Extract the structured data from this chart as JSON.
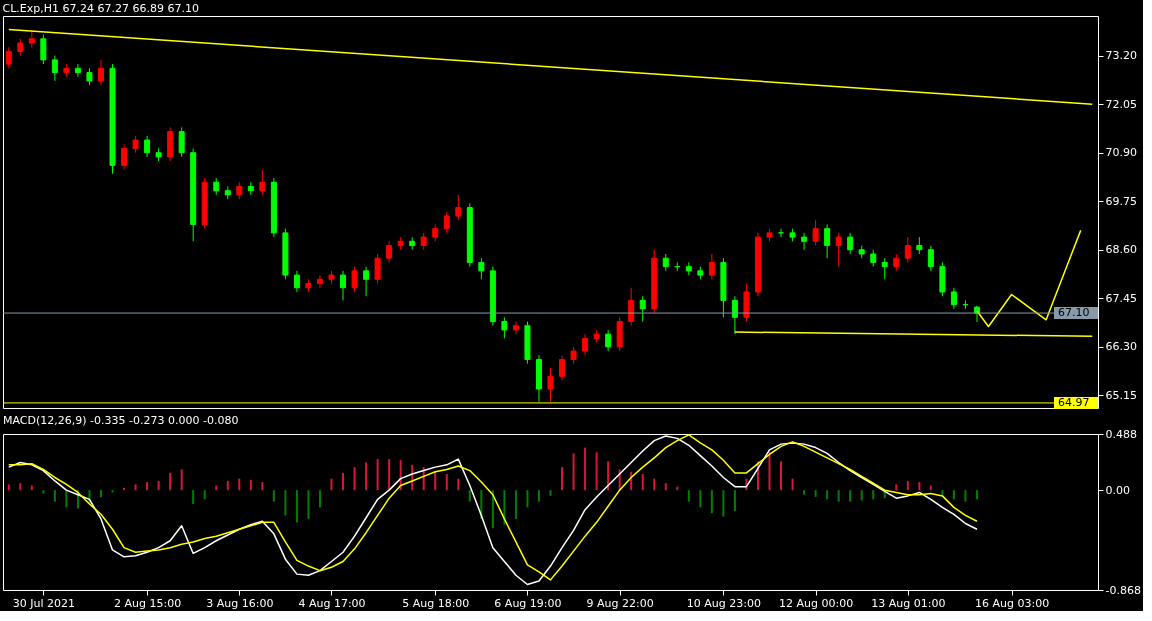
{
  "chart_data": [
    {
      "type": "candlestick",
      "title": "CL.Exp,H1  67.24 67.27 66.89 67.10",
      "categories": [
        null,
        null,
        null,
        null,
        null,
        null,
        null,
        null,
        null,
        null,
        null,
        null,
        null,
        null,
        null,
        null,
        null,
        null,
        null,
        null,
        null,
        null,
        null,
        null,
        null,
        null,
        null,
        null,
        null,
        null,
        null,
        null,
        null,
        null,
        null,
        null,
        null,
        null,
        null,
        null,
        null,
        null,
        null,
        null,
        null,
        null,
        null,
        null,
        null,
        null,
        null,
        null,
        null,
        null,
        null,
        null,
        null,
        null,
        null,
        null,
        null,
        null,
        null,
        null,
        null,
        null,
        null,
        null,
        null,
        null,
        null,
        null,
        null,
        null,
        null,
        null,
        null,
        null,
        null,
        null,
        null,
        null,
        null,
        null,
        null,
        null,
        null,
        null,
        null,
        null,
        null,
        null,
        null,
        null,
        null
      ],
      "ohlc": [
        [
          73.0,
          73.4,
          72.9,
          73.3
        ],
        [
          73.3,
          73.6,
          73.2,
          73.5
        ],
        [
          73.5,
          73.8,
          73.4,
          73.6
        ],
        [
          73.6,
          73.7,
          73.0,
          73.1
        ],
        [
          73.1,
          73.2,
          72.6,
          72.8
        ],
        [
          72.8,
          73.0,
          72.7,
          72.9
        ],
        [
          72.9,
          73.0,
          72.7,
          72.8
        ],
        [
          72.8,
          72.9,
          72.5,
          72.6
        ],
        [
          72.6,
          73.1,
          72.5,
          72.9
        ],
        [
          72.9,
          73.0,
          70.4,
          70.6
        ],
        [
          70.6,
          71.1,
          70.5,
          71.0
        ],
        [
          71.0,
          71.3,
          70.9,
          71.2
        ],
        [
          71.2,
          71.3,
          70.8,
          70.9
        ],
        [
          70.9,
          71.0,
          70.7,
          70.8
        ],
        [
          70.8,
          71.5,
          70.7,
          71.4
        ],
        [
          71.4,
          71.5,
          70.8,
          70.9
        ],
        [
          70.9,
          71.0,
          68.8,
          69.2
        ],
        [
          69.2,
          70.3,
          69.1,
          70.2
        ],
        [
          70.2,
          70.3,
          69.9,
          70.0
        ],
        [
          70.0,
          70.1,
          69.8,
          69.9
        ],
        [
          69.9,
          70.2,
          69.8,
          70.1
        ],
        [
          70.1,
          70.2,
          69.9,
          70.0
        ],
        [
          70.0,
          70.5,
          69.9,
          70.2
        ],
        [
          70.2,
          70.3,
          68.9,
          69.0
        ],
        [
          69.0,
          69.1,
          67.9,
          68.0
        ],
        [
          68.0,
          68.1,
          67.6,
          67.7
        ],
        [
          67.7,
          67.9,
          67.6,
          67.8
        ],
        [
          67.8,
          68.0,
          67.7,
          67.9
        ],
        [
          67.9,
          68.1,
          67.8,
          68.0
        ],
        [
          68.0,
          68.1,
          67.4,
          67.7
        ],
        [
          67.7,
          68.2,
          67.6,
          68.1
        ],
        [
          68.1,
          68.2,
          67.5,
          67.9
        ],
        [
          67.9,
          68.5,
          67.8,
          68.4
        ],
        [
          68.4,
          68.8,
          68.3,
          68.7
        ],
        [
          68.7,
          68.9,
          68.6,
          68.8
        ],
        [
          68.8,
          68.9,
          68.6,
          68.7
        ],
        [
          68.7,
          69.0,
          68.6,
          68.9
        ],
        [
          68.9,
          69.2,
          68.8,
          69.1
        ],
        [
          69.1,
          69.5,
          69.0,
          69.4
        ],
        [
          69.4,
          69.9,
          69.3,
          69.6
        ],
        [
          69.6,
          69.7,
          68.2,
          68.3
        ],
        [
          68.3,
          68.4,
          67.9,
          68.1
        ],
        [
          68.1,
          68.2,
          66.8,
          66.9
        ],
        [
          66.9,
          67.0,
          66.5,
          66.7
        ],
        [
          66.7,
          66.9,
          66.6,
          66.8
        ],
        [
          66.8,
          66.9,
          65.9,
          66.0
        ],
        [
          66.0,
          66.1,
          65.0,
          65.3
        ],
        [
          65.3,
          65.8,
          65.0,
          65.6
        ],
        [
          65.6,
          66.1,
          65.5,
          66.0
        ],
        [
          66.0,
          66.3,
          65.9,
          66.2
        ],
        [
          66.2,
          66.6,
          66.1,
          66.5
        ],
        [
          66.5,
          66.7,
          66.4,
          66.6
        ],
        [
          66.6,
          66.7,
          66.2,
          66.3
        ],
        [
          66.3,
          67.0,
          66.2,
          66.9
        ],
        [
          66.9,
          67.7,
          66.8,
          67.4
        ],
        [
          67.4,
          67.5,
          66.9,
          67.2
        ],
        [
          67.2,
          68.6,
          67.1,
          68.4
        ],
        [
          68.4,
          68.5,
          68.1,
          68.2
        ],
        [
          68.2,
          68.3,
          68.1,
          68.2
        ],
        [
          68.2,
          68.3,
          68.0,
          68.1
        ],
        [
          68.1,
          68.2,
          67.9,
          68.0
        ],
        [
          68.0,
          68.5,
          67.9,
          68.3
        ],
        [
          68.3,
          68.4,
          67.0,
          67.4
        ],
        [
          67.4,
          67.5,
          66.6,
          67.0
        ],
        [
          67.0,
          67.8,
          66.9,
          67.6
        ],
        [
          67.6,
          69.0,
          67.5,
          68.9
        ],
        [
          68.9,
          69.1,
          68.8,
          69.0
        ],
        [
          69.0,
          69.1,
          68.9,
          69.0
        ],
        [
          69.0,
          69.1,
          68.8,
          68.9
        ],
        [
          68.9,
          69.0,
          68.6,
          68.8
        ],
        [
          68.8,
          69.3,
          68.7,
          69.1
        ],
        [
          69.1,
          69.2,
          68.4,
          68.7
        ],
        [
          68.7,
          69.0,
          68.2,
          68.9
        ],
        [
          68.9,
          69.0,
          68.5,
          68.6
        ],
        [
          68.6,
          68.7,
          68.4,
          68.5
        ],
        [
          68.5,
          68.6,
          68.2,
          68.3
        ],
        [
          68.3,
          68.4,
          67.9,
          68.2
        ],
        [
          68.2,
          68.5,
          68.1,
          68.4
        ],
        [
          68.4,
          68.9,
          68.3,
          68.7
        ],
        [
          68.7,
          68.9,
          68.5,
          68.6
        ],
        [
          68.6,
          68.7,
          68.1,
          68.2
        ],
        [
          68.2,
          68.3,
          67.5,
          67.6
        ],
        [
          67.6,
          67.7,
          67.2,
          67.3
        ],
        [
          67.3,
          67.4,
          67.2,
          67.3
        ],
        [
          67.24,
          67.27,
          66.89,
          67.1
        ],
        null,
        null,
        null,
        null,
        null,
        null,
        null,
        null,
        null,
        null
      ],
      "colors": [
        "#ff0000",
        "#ff0000",
        "#ff0000",
        "#00ff00",
        "#00ff00",
        "#ff0000",
        "#00ff00",
        "#00ff00",
        "#ff0000",
        "#00ff00",
        "#ff0000",
        "#ff0000",
        "#00ff00",
        "#00ff00",
        "#ff0000",
        "#00ff00",
        "#00ff00",
        "#ff0000",
        "#00ff00",
        "#00ff00",
        "#ff0000",
        "#00ff00",
        "#ff0000",
        "#00ff00",
        "#00ff00",
        "#00ff00",
        "#ff0000",
        "#ff0000",
        "#ff0000",
        "#00ff00",
        "#ff0000",
        "#00ff00",
        "#ff0000",
        "#ff0000",
        "#ff0000",
        "#00ff00",
        "#ff0000",
        "#ff0000",
        "#ff0000",
        "#ff0000",
        "#00ff00",
        "#00ff00",
        "#00ff00",
        "#00ff00",
        "#ff0000",
        "#00ff00",
        "#00ff00",
        "#ff0000",
        "#ff0000",
        "#ff0000",
        "#ff0000",
        "#ff0000",
        "#00ff00",
        "#ff0000",
        "#ff0000",
        "#00ff00",
        "#ff0000",
        "#00ff00",
        "#00ff00",
        "#00ff00",
        "#00ff00",
        "#ff0000",
        "#00ff00",
        "#00ff00",
        "#ff0000",
        "#ff0000",
        "#ff0000",
        "#00ff00",
        "#00ff00",
        "#00ff00",
        "#ff0000",
        "#00ff00",
        "#ff0000",
        "#00ff00",
        "#00ff00",
        "#00ff00",
        "#00ff00",
        "#ff0000",
        "#ff0000",
        "#00ff00",
        "#00ff00",
        "#00ff00",
        "#00ff00",
        "#00ff00",
        "#00ff00",
        null,
        null,
        null,
        null,
        null,
        null,
        null,
        null,
        null,
        null
      ],
      "series": [
        {
          "type": "line",
          "color": "#ffff00",
          "values": [
            73.82,
            null,
            null,
            null,
            null,
            null,
            null,
            null,
            null,
            null,
            null,
            null,
            null,
            null,
            null,
            null,
            null,
            null,
            null,
            null,
            null,
            null,
            null,
            null,
            null,
            null,
            null,
            null,
            null,
            null,
            null,
            null,
            null,
            null,
            null,
            null,
            null,
            null,
            null,
            null,
            null,
            null,
            null,
            null,
            null,
            null,
            null,
            null,
            null,
            null,
            null,
            null,
            null,
            null,
            null,
            null,
            null,
            null,
            null,
            null,
            null,
            null,
            null,
            null,
            null,
            null,
            null,
            null,
            null,
            null,
            null,
            null,
            null,
            null,
            null,
            null,
            null,
            null,
            null,
            null,
            null,
            null,
            null,
            null,
            null,
            null,
            null,
            null,
            null,
            null,
            null,
            null,
            null,
            null,
            72.05
          ]
        },
        {
          "type": "line",
          "color": "#ffff00",
          "values": [
            null,
            null,
            null,
            null,
            null,
            null,
            null,
            null,
            null,
            null,
            null,
            null,
            null,
            null,
            null,
            null,
            null,
            null,
            null,
            null,
            null,
            null,
            null,
            null,
            null,
            null,
            null,
            null,
            null,
            null,
            null,
            null,
            null,
            null,
            null,
            null,
            null,
            null,
            null,
            null,
            null,
            null,
            null,
            null,
            null,
            null,
            null,
            null,
            null,
            null,
            null,
            null,
            null,
            null,
            null,
            null,
            null,
            null,
            null,
            null,
            null,
            null,
            null,
            66.65,
            null,
            null,
            null,
            null,
            null,
            null,
            null,
            null,
            null,
            null,
            null,
            null,
            null,
            null,
            null,
            null,
            null,
            null,
            null,
            null,
            null,
            null,
            null,
            null,
            null,
            null,
            null,
            null,
            null,
            null,
            66.55
          ]
        },
        {
          "type": "line",
          "color": "#ffff00",
          "values": [
            null,
            null,
            null,
            null,
            null,
            null,
            null,
            null,
            null,
            null,
            null,
            null,
            null,
            null,
            null,
            null,
            null,
            null,
            null,
            null,
            null,
            null,
            null,
            null,
            null,
            null,
            null,
            null,
            null,
            null,
            null,
            null,
            null,
            null,
            null,
            null,
            null,
            null,
            null,
            null,
            null,
            null,
            null,
            null,
            null,
            null,
            null,
            null,
            null,
            null,
            null,
            null,
            null,
            null,
            null,
            null,
            null,
            null,
            null,
            null,
            null,
            null,
            null,
            null,
            null,
            null,
            null,
            null,
            null,
            null,
            null,
            null,
            null,
            null,
            null,
            null,
            null,
            null,
            null,
            null,
            null,
            null,
            null,
            null,
            67.15,
            66.78,
            null,
            67.54,
            null,
            null,
            66.94,
            null,
            null,
            69.06,
            null
          ]
        }
      ],
      "ref_lines": [
        {
          "axis": "y",
          "value": 67.1,
          "label": "67.10",
          "color": "#8899aa"
        },
        {
          "axis": "y",
          "value": 64.97,
          "label": "64.97",
          "color": "#ffff00"
        }
      ],
      "ylim": [
        64.85,
        74.14
      ],
      "yticks": [
        {
          "value": 73.2,
          "label": "73.20"
        },
        {
          "value": 72.05,
          "label": "72.05"
        },
        {
          "value": 70.9,
          "label": "70.90"
        },
        {
          "value": 69.75,
          "label": "69.75"
        },
        {
          "value": 68.6,
          "label": "68.60"
        },
        {
          "value": 67.45,
          "label": "67.45"
        },
        {
          "value": 66.3,
          "label": "66.30"
        },
        {
          "value": 65.15,
          "label": "65.15"
        }
      ],
      "tick_labels": "y",
      "grid": false
    },
    {
      "type": "bar",
      "title": "MACD(12,26,9) -0.335 -0.273 0.000 -0.080",
      "categories": [
        null,
        null,
        null,
        "30 Jul 2021",
        null,
        null,
        null,
        null,
        null,
        null,
        null,
        null,
        "2 Aug 15:00",
        null,
        null,
        null,
        null,
        null,
        null,
        null,
        "3 Aug 16:00",
        null,
        null,
        null,
        null,
        null,
        null,
        null,
        "4 Aug 17:00",
        null,
        null,
        null,
        null,
        null,
        null,
        null,
        null,
        "5 Aug 18:00",
        null,
        null,
        null,
        null,
        null,
        null,
        null,
        "6 Aug 19:00",
        null,
        null,
        null,
        null,
        null,
        null,
        null,
        "9 Aug 22:00",
        null,
        null,
        null,
        null,
        null,
        null,
        null,
        null,
        "10 Aug 23:00",
        null,
        null,
        null,
        null,
        null,
        null,
        null,
        "12 Aug 00:00",
        null,
        null,
        null,
        null,
        null,
        null,
        null,
        "13 Aug 01:00",
        null,
        null,
        null,
        null,
        null,
        null,
        null,
        null,
        "16 Aug 03:00",
        null,
        null,
        null,
        null,
        null,
        null,
        null
      ],
      "values": [
        0.05,
        0.06,
        0.04,
        -0.03,
        -0.1,
        -0.15,
        -0.16,
        -0.12,
        -0.06,
        -0.02,
        0.02,
        0.05,
        0.07,
        0.08,
        0.15,
        0.18,
        -0.12,
        -0.08,
        0.04,
        0.08,
        0.1,
        0.09,
        0.07,
        -0.1,
        -0.22,
        -0.28,
        -0.25,
        -0.15,
        0.1,
        0.15,
        0.2,
        0.24,
        0.27,
        0.27,
        0.26,
        0.22,
        0.2,
        0.16,
        0.14,
        0.1,
        -0.1,
        -0.25,
        -0.33,
        -0.3,
        -0.25,
        -0.15,
        -0.1,
        -0.05,
        0.2,
        0.32,
        0.37,
        0.33,
        0.25,
        0.18,
        0.16,
        0.14,
        0.1,
        0.06,
        0.03,
        -0.1,
        -0.15,
        -0.2,
        -0.23,
        -0.18,
        0.1,
        0.25,
        0.33,
        0.25,
        0.1,
        -0.04,
        -0.06,
        -0.08,
        -0.1,
        -0.1,
        -0.09,
        -0.08,
        -0.07,
        0.05,
        0.08,
        0.07,
        0.04,
        -0.05,
        -0.08,
        -0.1,
        -0.08,
        null,
        null,
        null,
        null,
        null,
        null,
        null,
        null,
        null,
        null
      ],
      "colors": [
        "#dc143c",
        "#dc143c",
        "#dc143c",
        "#008000",
        "#008000",
        "#008000",
        "#008000",
        "#008000",
        "#008000",
        "#008000",
        "#dc143c",
        "#dc143c",
        "#dc143c",
        "#dc143c",
        "#dc143c",
        "#dc143c",
        "#008000",
        "#008000",
        "#dc143c",
        "#dc143c",
        "#dc143c",
        "#dc143c",
        "#dc143c",
        "#008000",
        "#008000",
        "#008000",
        "#008000",
        "#008000",
        "#dc143c",
        "#dc143c",
        "#dc143c",
        "#dc143c",
        "#dc143c",
        "#dc143c",
        "#dc143c",
        "#dc143c",
        "#dc143c",
        "#dc143c",
        "#dc143c",
        "#dc143c",
        "#008000",
        "#008000",
        "#008000",
        "#008000",
        "#008000",
        "#008000",
        "#008000",
        "#008000",
        "#dc143c",
        "#dc143c",
        "#dc143c",
        "#dc143c",
        "#dc143c",
        "#dc143c",
        "#dc143c",
        "#dc143c",
        "#dc143c",
        "#dc143c",
        "#dc143c",
        "#008000",
        "#008000",
        "#008000",
        "#008000",
        "#008000",
        "#dc143c",
        "#dc143c",
        "#dc143c",
        "#dc143c",
        "#dc143c",
        "#008000",
        "#008000",
        "#008000",
        "#008000",
        "#008000",
        "#008000",
        "#008000",
        "#008000",
        "#dc143c",
        "#dc143c",
        "#dc143c",
        "#dc143c",
        "#008000",
        "#008000",
        "#008000",
        "#008000",
        null,
        null,
        null,
        null,
        null,
        null,
        null,
        null,
        null,
        null
      ],
      "series": [
        {
          "type": "line",
          "color": "#ffffff",
          "values": [
            0.2,
            0.24,
            0.22,
            0.17,
            0.08,
            0.0,
            -0.04,
            -0.08,
            -0.25,
            -0.52,
            -0.58,
            -0.57,
            -0.54,
            -0.5,
            -0.44,
            -0.31,
            -0.55,
            -0.5,
            -0.44,
            -0.39,
            -0.34,
            -0.3,
            -0.27,
            -0.38,
            -0.6,
            -0.73,
            -0.74,
            -0.7,
            -0.62,
            -0.54,
            -0.4,
            -0.24,
            -0.08,
            0.0,
            0.1,
            0.14,
            0.17,
            0.2,
            0.22,
            0.27,
            0.04,
            -0.22,
            -0.5,
            -0.62,
            -0.74,
            -0.82,
            -0.79,
            -0.66,
            -0.5,
            -0.35,
            -0.17,
            -0.06,
            0.04,
            0.14,
            0.24,
            0.34,
            0.43,
            0.47,
            0.45,
            0.39,
            0.3,
            0.21,
            0.11,
            0.03,
            0.03,
            0.19,
            0.35,
            0.4,
            0.41,
            0.4,
            0.37,
            0.32,
            0.24,
            0.17,
            0.11,
            0.05,
            -0.01,
            -0.07,
            -0.05,
            -0.02,
            -0.08,
            -0.15,
            -0.21,
            -0.29,
            -0.34,
            null,
            null,
            null,
            null,
            null,
            null,
            null,
            null,
            null,
            null
          ]
        },
        {
          "type": "line",
          "color": "#ffff00",
          "values": [
            0.22,
            0.22,
            0.23,
            0.18,
            0.11,
            0.05,
            -0.02,
            -0.12,
            -0.21,
            -0.34,
            -0.5,
            -0.54,
            -0.53,
            -0.52,
            -0.5,
            -0.47,
            -0.45,
            -0.42,
            -0.4,
            -0.37,
            -0.34,
            -0.31,
            -0.28,
            -0.28,
            -0.45,
            -0.61,
            -0.66,
            -0.7,
            -0.67,
            -0.62,
            -0.51,
            -0.37,
            -0.22,
            -0.07,
            0.04,
            0.08,
            0.12,
            0.16,
            0.18,
            0.21,
            0.17,
            0.07,
            -0.04,
            -0.25,
            -0.45,
            -0.65,
            -0.71,
            -0.78,
            -0.66,
            -0.53,
            -0.4,
            -0.28,
            -0.14,
            0.0,
            0.11,
            0.2,
            0.28,
            0.37,
            0.43,
            0.48,
            0.41,
            0.35,
            0.26,
            0.15,
            0.15,
            0.23,
            0.31,
            0.38,
            0.42,
            0.38,
            0.33,
            0.28,
            0.23,
            0.18,
            0.12,
            0.06,
            0.0,
            -0.02,
            -0.04,
            -0.04,
            -0.03,
            -0.05,
            -0.15,
            -0.22,
            -0.27,
            null,
            null,
            null,
            null,
            null,
            null,
            null,
            null,
            null,
            null
          ]
        }
      ],
      "ylim": [
        -0.868,
        0.488
      ],
      "yticks": [
        0.488,
        {
          "value": 0,
          "label": "0.00"
        },
        -0.868
      ],
      "grid": false
    }
  ]
}
